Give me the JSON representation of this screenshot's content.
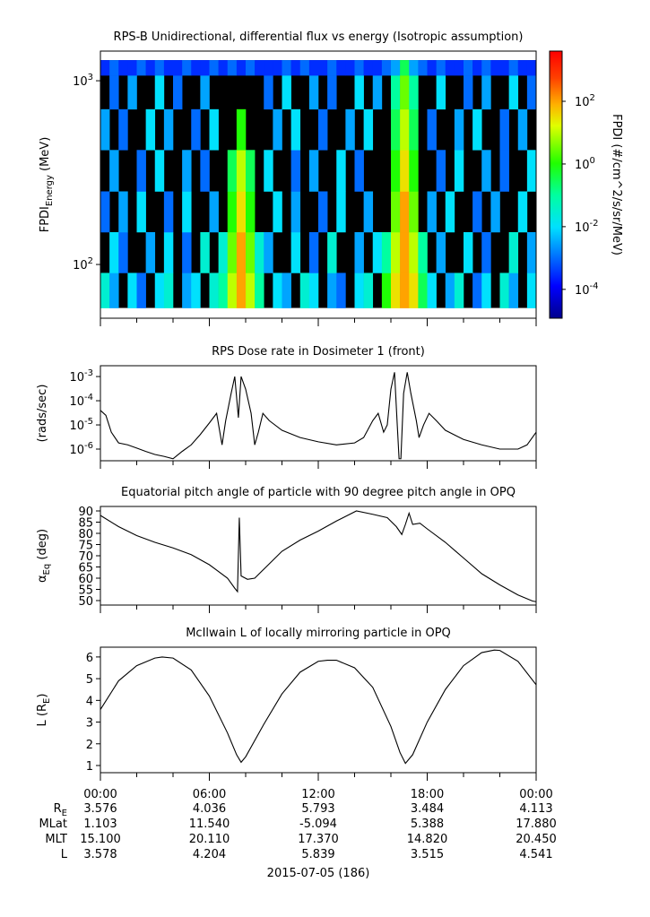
{
  "chart_data": [
    {
      "type": "heatmap",
      "title": "RPS-B  Unidirectional, differential flux vs energy (Isotropic assumption)",
      "ylabel": "FPDI_{Energy} (MeV)",
      "ylog": true,
      "ylim": [
        51,
        1450
      ],
      "yticks": [
        {
          "value": 100,
          "label": "10^{2}"
        },
        {
          "value": 1000,
          "label": "10^{3}"
        }
      ],
      "xlim": [
        0,
        24
      ],
      "xticks": [
        0,
        6,
        12,
        18,
        24
      ],
      "xminor": [
        2,
        4,
        8,
        10,
        14,
        16,
        20,
        22
      ],
      "colormap": "jet",
      "zlabel": "FPDI (#/cm^2/s/sr/MeV)",
      "zlim": [
        1.2e-05,
        4000
      ],
      "zticks": [
        {
          "value": 0.0001,
          "label": "10^{-4}"
        },
        {
          "value": 0.01,
          "label": "10^{-2}"
        },
        {
          "value": 1,
          "label": "10^{0}"
        },
        {
          "value": 100,
          "label": "10^{2}"
        }
      ],
      "xbins": [
        0,
        0.5,
        1,
        1.5,
        2,
        2.5,
        3,
        3.5,
        4,
        4.5,
        5,
        5.5,
        6,
        6.5,
        7,
        7.5,
        8,
        8.5,
        9,
        9.5,
        10,
        10.5,
        11,
        11.5,
        12,
        12.5,
        13,
        13.5,
        14,
        14.5,
        15,
        15.5,
        16,
        16.5,
        17,
        17.5,
        18,
        18.5,
        19,
        19.5,
        20,
        20.5,
        21,
        21.5,
        22,
        22.5,
        23,
        23.5,
        24
      ],
      "ybins": [
        58,
        90,
        150,
        250,
        420,
        700,
        1070,
        1295
      ],
      "values": [
        [
          0.03,
          0.003,
          null,
          0.01,
          0.001,
          null,
          0.01,
          0.03,
          null,
          0.003,
          0.01,
          null,
          0.03,
          0.1,
          10,
          100,
          10,
          0.1,
          null,
          0.01,
          0.003,
          null,
          0.03,
          0.01,
          null,
          0.003,
          0.001,
          null,
          0.01,
          0.03,
          null,
          1,
          30,
          100,
          30,
          0.3,
          0.01,
          null,
          0.003,
          0.03,
          null,
          0.001,
          0.01,
          null,
          0.03,
          0.003,
          null,
          0.01
        ],
        [
          null,
          0.01,
          0.001,
          null,
          null,
          0.003,
          null,
          0.01,
          null,
          0.001,
          null,
          0.03,
          null,
          0.03,
          3,
          100,
          3,
          0.03,
          0.003,
          null,
          null,
          0.01,
          null,
          0.001,
          null,
          0.03,
          null,
          null,
          0.003,
          null,
          0.01,
          0.1,
          10,
          100,
          10,
          0.1,
          null,
          0.003,
          null,
          null,
          0.01,
          null,
          0.001,
          null,
          null,
          0.03,
          null,
          0.003
        ],
        [
          0.001,
          null,
          0.003,
          null,
          0.01,
          null,
          null,
          0.001,
          null,
          0.01,
          null,
          null,
          0.003,
          null,
          1,
          30,
          1,
          null,
          null,
          0.01,
          null,
          0.003,
          null,
          null,
          0.001,
          null,
          0.01,
          null,
          null,
          0.003,
          null,
          null,
          3,
          100,
          3,
          null,
          0.003,
          null,
          0.01,
          null,
          null,
          0.001,
          null,
          0.003,
          null,
          null,
          0.01,
          null
        ],
        [
          null,
          0.003,
          null,
          null,
          0.001,
          null,
          0.01,
          null,
          null,
          0.003,
          null,
          0.001,
          null,
          null,
          0.3,
          10,
          0.3,
          null,
          0.01,
          null,
          null,
          0.001,
          null,
          0.003,
          null,
          null,
          0.01,
          null,
          0.001,
          null,
          null,
          null,
          1,
          30,
          1,
          null,
          null,
          0.001,
          null,
          0.01,
          null,
          null,
          0.003,
          null,
          0.001,
          null,
          null,
          0.01
        ],
        [
          0.003,
          null,
          0.001,
          null,
          null,
          0.01,
          null,
          0.003,
          null,
          null,
          0.001,
          null,
          0.01,
          null,
          null,
          1,
          null,
          null,
          null,
          0.003,
          null,
          0.01,
          null,
          null,
          0.001,
          null,
          null,
          0.003,
          null,
          0.01,
          null,
          null,
          0.3,
          10,
          0.3,
          null,
          0.001,
          null,
          null,
          0.003,
          null,
          0.01,
          null,
          null,
          0.001,
          null,
          0.003,
          null
        ],
        [
          null,
          0.001,
          null,
          0.003,
          null,
          null,
          0.01,
          null,
          0.001,
          null,
          null,
          0.003,
          null,
          null,
          null,
          null,
          null,
          null,
          0.001,
          null,
          0.01,
          null,
          null,
          0.003,
          null,
          0.001,
          null,
          null,
          0.01,
          null,
          0.003,
          null,
          0.1,
          3,
          0.1,
          null,
          null,
          0.01,
          null,
          null,
          0.001,
          null,
          0.003,
          null,
          null,
          0.01,
          null,
          0.001
        ],
        [
          0.0003,
          0.001,
          0.0003,
          0.0003,
          0.001,
          0.0003,
          0.001,
          0.0003,
          0.0003,
          0.001,
          0.0003,
          0.0003,
          0.001,
          0.0003,
          0.001,
          0.0003,
          0.001,
          0.0003,
          0.0003,
          0.0003,
          0.001,
          0.0003,
          0.001,
          0.0003,
          0.0003,
          0.001,
          0.0003,
          0.0003,
          0.001,
          0.0003,
          0.0003,
          0.001,
          0.003,
          0.3,
          0.003,
          0.001,
          0.0003,
          0.001,
          0.0003,
          0.0003,
          0.001,
          0.0003,
          0.001,
          0.0003,
          0.0003,
          0.001,
          0.0003,
          0.0003
        ]
      ]
    },
    {
      "type": "line",
      "title": "RPS  Dose rate in Dosimeter 1 (front)",
      "ylabel": "(rads/sec)",
      "ylog": true,
      "ylim": [
        3.3e-07,
        0.0028
      ],
      "yticks": [
        {
          "value": 1e-06,
          "label": "10^{-6}"
        },
        {
          "value": 1e-05,
          "label": "10^{-5}"
        },
        {
          "value": 0.0001,
          "label": "10^{-4}"
        },
        {
          "value": 0.001,
          "label": "10^{-3}"
        }
      ],
      "xlim": [
        0,
        24
      ],
      "xticks": [
        0,
        6,
        12,
        18,
        24
      ],
      "xminor": [
        2,
        4,
        8,
        10,
        14,
        16,
        20,
        22
      ],
      "x": [
        0,
        0.3,
        0.6,
        1,
        1.5,
        2,
        2.5,
        3,
        3.5,
        4,
        4.5,
        5,
        5.5,
        6,
        6.4,
        6.7,
        6.9,
        7.2,
        7.4,
        7.6,
        7.75,
        8.0,
        8.3,
        8.5,
        8.7,
        8.95,
        9.3,
        10,
        11,
        12,
        13,
        14,
        14.5,
        15,
        15.3,
        15.6,
        15.8,
        16.0,
        16.2,
        16.35,
        16.45,
        16.55,
        16.7,
        16.9,
        17.1,
        17.4,
        17.55,
        17.8,
        18.1,
        18.5,
        19,
        20,
        21,
        22,
        23,
        23.5,
        24
      ],
      "series": [
        {
          "color": "#000000",
          "values": [
            4e-05,
            2.5e-05,
            5e-06,
            1.8e-06,
            1.5e-06,
            1.1e-06,
            8e-07,
            6e-07,
            5e-07,
            4e-07,
            8e-07,
            1.5e-06,
            4e-06,
            1.2e-05,
            3e-05,
            1.5e-06,
            1.5e-05,
            0.0002,
            0.001,
            2e-05,
            0.001,
            0.0003,
            3e-05,
            1.5e-06,
            5e-06,
            3e-05,
            1.5e-05,
            6e-06,
            3e-06,
            2e-06,
            1.5e-06,
            1.8e-06,
            3e-06,
            1.5e-05,
            3e-05,
            5e-06,
            1e-05,
            0.0003,
            0.0015,
            1e-05,
            4e-07,
            4e-07,
            0.0002,
            0.0015,
            0.0002,
            1.5e-05,
            3e-06,
            1e-05,
            3e-05,
            1.5e-05,
            6e-06,
            2.5e-06,
            1.5e-06,
            1e-06,
            1e-06,
            1.5e-06,
            5e-06
          ]
        }
      ]
    },
    {
      "type": "line",
      "title": "Equatorial pitch angle of particle with 90 degree pitch angle in OPQ",
      "ylabel": "α_{Eq} (deg)",
      "ylim": [
        48,
        92
      ],
      "yticks": [
        50,
        55,
        60,
        65,
        70,
        75,
        80,
        85,
        90
      ],
      "xlim": [
        0,
        24
      ],
      "xticks": [
        0,
        6,
        12,
        18,
        24
      ],
      "xminor": [
        2,
        4,
        8,
        10,
        14,
        16,
        20,
        22
      ],
      "x": [
        0,
        1,
        2,
        3,
        4,
        5,
        6,
        7,
        7.4,
        7.55,
        7.65,
        7.75,
        8.1,
        8.5,
        9,
        10,
        11,
        12,
        13,
        14.1,
        15,
        15.8,
        16.3,
        16.6,
        16.8,
        17.0,
        17.2,
        17.6,
        18,
        19,
        20,
        21,
        22,
        23,
        23.8,
        24
      ],
      "series": [
        {
          "color": "#000000",
          "values": [
            88,
            83,
            79,
            76,
            73.5,
            70.5,
            66,
            60,
            55.5,
            54,
            87,
            61,
            59.5,
            60,
            64,
            72,
            77,
            81,
            85.5,
            90,
            88.5,
            87,
            83,
            79.5,
            84,
            89,
            84,
            84.5,
            82,
            76,
            69,
            62,
            57,
            52.5,
            49.8,
            49.5
          ]
        }
      ]
    },
    {
      "type": "line",
      "title": "McIlwain L of locally mirroring particle in OPQ",
      "ylabel": "L (R_{E})",
      "ylim": [
        0.67,
        6.45
      ],
      "yticks": [
        1,
        2,
        3,
        4,
        5,
        6
      ],
      "xlim": [
        0,
        24
      ],
      "xticks": [
        {
          "value": 0,
          "label": "00:00"
        },
        {
          "value": 6,
          "label": "06:00"
        },
        {
          "value": 12,
          "label": "12:00"
        },
        {
          "value": 18,
          "label": "18:00"
        },
        {
          "value": 24,
          "label": "00:00"
        }
      ],
      "xminor": [
        2,
        4,
        8,
        10,
        14,
        16,
        20,
        22
      ],
      "x": [
        0,
        1,
        2,
        3,
        3.4,
        4,
        5,
        6,
        7,
        7.5,
        7.75,
        8,
        9,
        10,
        11,
        12,
        12.5,
        13,
        14,
        15,
        16,
        16.5,
        16.8,
        17.2,
        18,
        19,
        20,
        21,
        21.7,
        22,
        23,
        24
      ],
      "series": [
        {
          "color": "#000000",
          "values": [
            3.58,
            4.9,
            5.6,
            5.95,
            6.0,
            5.95,
            5.4,
            4.2,
            2.5,
            1.5,
            1.15,
            1.4,
            2.9,
            4.3,
            5.3,
            5.8,
            5.85,
            5.85,
            5.5,
            4.6,
            2.8,
            1.6,
            1.1,
            1.5,
            3.0,
            4.5,
            5.6,
            6.2,
            6.32,
            6.3,
            5.8,
            4.72
          ]
        }
      ]
    }
  ],
  "ephemeris": {
    "rows": [
      {
        "label": "R_{E}",
        "values": [
          "3.576",
          "4.036",
          "5.793",
          "3.484",
          "4.113"
        ]
      },
      {
        "label": "MLat",
        "values": [
          "1.103",
          "11.540",
          "-5.094",
          "5.388",
          "17.880"
        ]
      },
      {
        "label": "MLT",
        "values": [
          "15.100",
          "20.110",
          "17.370",
          "14.820",
          "20.450"
        ]
      },
      {
        "label": "L",
        "values": [
          "3.578",
          "4.204",
          "5.839",
          "3.515",
          "4.541"
        ]
      }
    ],
    "date": "2015-07-05 (186)"
  }
}
